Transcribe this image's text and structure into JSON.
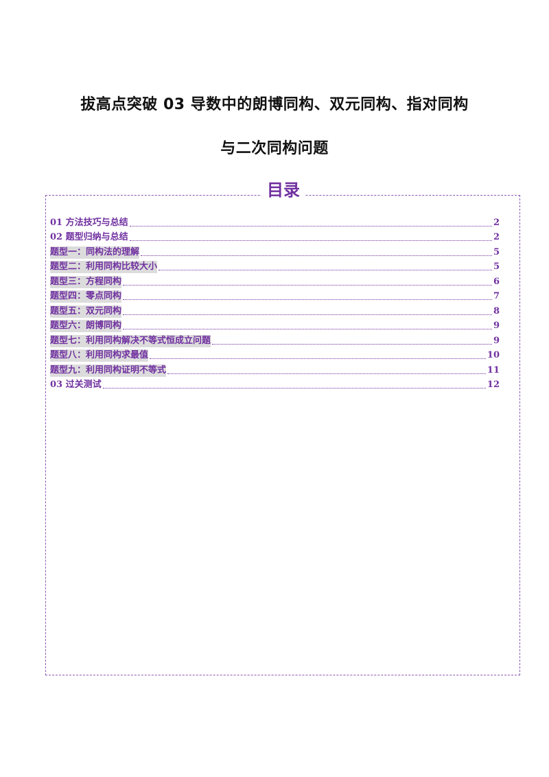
{
  "document": {
    "title_line1": "拔高点突破 03   导数中的朗博同构、双元同构、指对同构",
    "title_line2": "与二次同构问题"
  },
  "toc": {
    "heading": "目录",
    "entries": [
      {
        "label": "01 方法技巧与总结",
        "page": "2"
      },
      {
        "label": "02 题型归纳与总结",
        "page": "2"
      },
      {
        "label": "题型一：同构法的理解",
        "page": "5"
      },
      {
        "label": "题型二：利用同构比较大小",
        "page": "5"
      },
      {
        "label": "题型三：方程同构",
        "page": "6"
      },
      {
        "label": "题型四：零点同构",
        "page": "7"
      },
      {
        "label": "题型五：双元同构",
        "page": "8"
      },
      {
        "label": "题型六：朗博同构",
        "page": "9"
      },
      {
        "label": "题型七：利用同构解决不等式恒成立问题",
        "page": "9"
      },
      {
        "label": "题型八：利用同构求最值",
        "page": "10"
      },
      {
        "label": "题型九：利用同构证明不等式",
        "page": "11"
      },
      {
        "label": "03 过关测试",
        "page": "12"
      }
    ]
  },
  "colors": {
    "accent": "#7030a0",
    "highlight": "#dcdcdc",
    "title": "#111111"
  }
}
